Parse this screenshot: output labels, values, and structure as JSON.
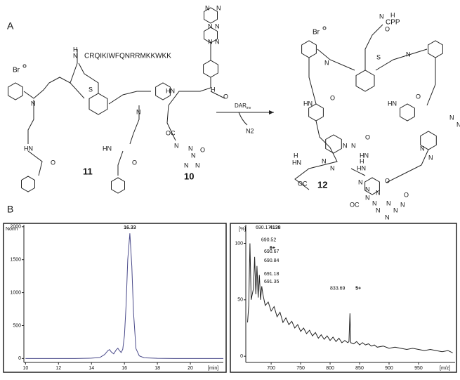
{
  "panel_a": {
    "label": "A",
    "counterion": "Br",
    "peptide": "CRQIKIWFQNRRMKKWKK",
    "cpp": "CPP",
    "reagent": "DAR",
    "reagent_subscript": "inv",
    "byproduct": "N2",
    "compounds": [
      "11",
      "10",
      "12"
    ],
    "atom_labels": [
      "N",
      "H",
      "S",
      "N",
      "N",
      "HN",
      "O",
      "HN",
      "O",
      "N",
      "N",
      "N",
      "N",
      "N",
      "N",
      "HN",
      "H",
      "O",
      "OC",
      "N",
      "N",
      "N",
      "N",
      "N",
      "O",
      "H",
      "N",
      "O",
      "S",
      "N",
      "N",
      "HN",
      "O",
      "HN",
      "O",
      "N",
      "N",
      "N",
      "N",
      "N",
      "N",
      "HN",
      "H",
      "OC",
      "N",
      "N",
      "N",
      "N",
      "N",
      "O",
      "HN",
      "O",
      "N",
      "N",
      "HN",
      "H",
      "OC",
      "N",
      "N",
      "N",
      "N",
      "N",
      "O"
    ]
  },
  "panel_b": {
    "label": "B"
  },
  "chart_data": [
    {
      "type": "line",
      "y_label": "Norm",
      "x_label": "[min]",
      "color": "#4a4a8a",
      "xlim": [
        9.9,
        22
      ],
      "ylim": [
        -60,
        2030
      ],
      "xticks": [
        10,
        12,
        14,
        16,
        18,
        20
      ],
      "yticks": [
        0,
        500,
        1000,
        1500,
        2000
      ],
      "x": [
        10,
        11,
        12,
        13,
        14,
        14.5,
        14.8,
        15.0,
        15.1,
        15.2,
        15.35,
        15.5,
        15.6,
        15.7,
        15.8,
        15.9,
        16.0,
        16.1,
        16.2,
        16.33,
        16.45,
        16.55,
        16.7,
        16.9,
        17.2,
        18,
        19,
        20,
        21,
        22
      ],
      "values": [
        0,
        0,
        0,
        0,
        5,
        15,
        60,
        120,
        135,
        100,
        70,
        130,
        155,
        120,
        90,
        140,
        350,
        800,
        1500,
        1900,
        1400,
        700,
        150,
        40,
        10,
        3,
        0,
        0,
        0,
        0
      ],
      "annotations": [
        {
          "text": "16.33",
          "x": 16.33,
          "y": 1900
        }
      ]
    },
    {
      "type": "line",
      "y_label": "[%]",
      "x_label": "[m/z]",
      "color": "#222222",
      "xlim": [
        657,
        1012
      ],
      "ylim": [
        -5.5,
        116.5
      ],
      "xticks": [
        700,
        750,
        800,
        850,
        900,
        950
      ],
      "yticks": [
        0,
        50,
        100
      ],
      "x": [
        660,
        662,
        664,
        666,
        670,
        672,
        674,
        676,
        678,
        680,
        682,
        684,
        686,
        690,
        695,
        700,
        705,
        710,
        715,
        720,
        725,
        730,
        735,
        740,
        745,
        750,
        755,
        760,
        765,
        770,
        775,
        780,
        785,
        790,
        795,
        800,
        805,
        810,
        815,
        820,
        825,
        830,
        832,
        833.69,
        835,
        840,
        845,
        850,
        855,
        860,
        865,
        870,
        875,
        880,
        890,
        900,
        910,
        920,
        930,
        940,
        950,
        960,
        970,
        980,
        990,
        1000,
        1008
      ],
      "values": [
        30,
        45,
        100,
        50,
        60,
        88,
        55,
        80,
        52,
        72,
        50,
        62,
        55,
        45,
        48,
        40,
        44,
        35,
        39,
        30,
        34,
        28,
        31,
        25,
        28,
        22,
        25,
        20,
        23,
        18,
        21,
        16,
        19,
        15,
        18,
        14,
        17,
        13,
        16,
        12,
        14,
        12,
        13,
        38,
        12,
        11,
        13,
        10,
        12,
        10,
        11,
        9,
        10,
        8,
        9,
        7,
        8,
        7,
        6,
        7,
        6,
        5,
        6,
        5,
        4,
        5,
        3
      ],
      "annotations": [
        {
          "text": "690.17",
          "x": 673.7,
          "y": 114
        },
        {
          "text": "4138",
          "x": 697.5,
          "y": 114
        },
        {
          "text": "690.52",
          "x": 683,
          "y": 103
        },
        {
          "text": "6+",
          "x": 697.5,
          "y": 96
        },
        {
          "text": "690.67",
          "x": 688,
          "y": 92.6
        },
        {
          "text": "690.84",
          "x": 688,
          "y": 84.6
        },
        {
          "text": "691.18",
          "x": 688,
          "y": 72.8
        },
        {
          "text": "691.35",
          "x": 688,
          "y": 66
        },
        {
          "text": "833.69",
          "x": 800,
          "y": 60
        },
        {
          "text": "5+",
          "x": 843,
          "y": 60
        }
      ]
    }
  ]
}
